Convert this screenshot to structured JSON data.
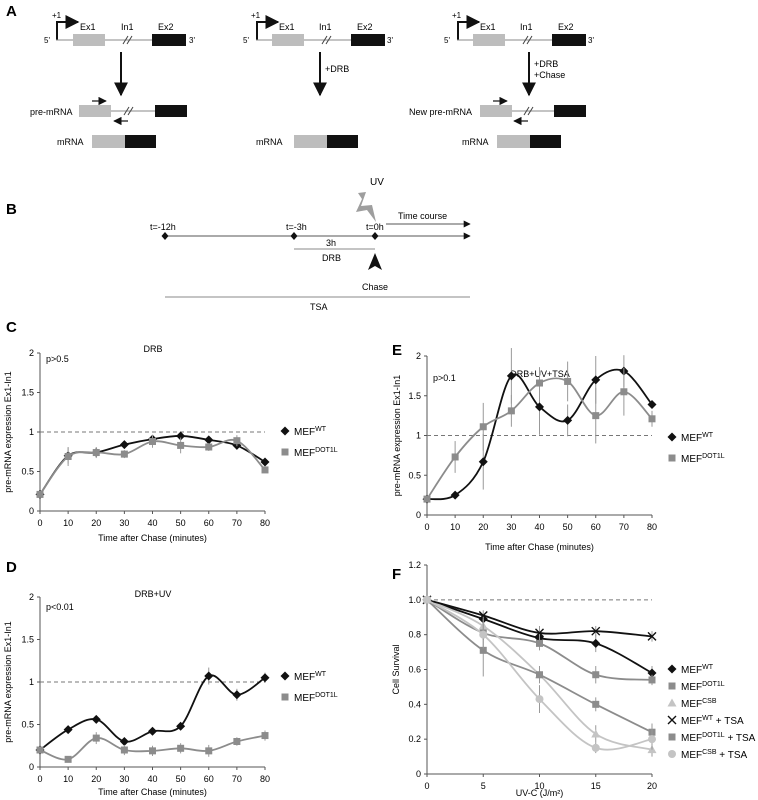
{
  "panel_letters": {
    "a": "A",
    "b": "B",
    "c": "C",
    "d": "D",
    "e": "E",
    "f": "F"
  },
  "panelA": {
    "tss": "+1",
    "five": "5'",
    "three": "3'",
    "ex1": "Ex1",
    "in1": "In1",
    "ex2": "Ex2",
    "drb": "+DRB",
    "drb2": "+DRB",
    "chase": "+Chase",
    "premrna": "pre-mRNA",
    "new_premrna": "New pre-mRNA",
    "mrna": "mRNA",
    "colors": {
      "exon1": "#bdbdbd",
      "exon2": "#111111",
      "arrow": "#111111"
    }
  },
  "panelB": {
    "uv": "UV",
    "time_course": "Time course",
    "t12": "t=-12h",
    "t3": "t=-3h",
    "t0": "t=0h",
    "dur": "3h",
    "drb": "DRB",
    "chase": "Chase",
    "tsa": "TSA"
  },
  "chart_data": [
    {
      "panel": "C",
      "type": "line",
      "title": "DRB",
      "annotation": "p>0.5",
      "xlabel": "Time after Chase (minutes)",
      "ylabel": "pre-mRNA expression Ex1-In1",
      "x": [
        0,
        10,
        20,
        30,
        40,
        50,
        60,
        70,
        80
      ],
      "xlim": [
        0,
        80
      ],
      "ylim": [
        0,
        2
      ],
      "yticks": [
        0,
        0.5,
        1,
        1.5,
        2
      ],
      "ytick_labels": [
        "0",
        "0.5",
        "1",
        "1.5",
        "2"
      ],
      "reference_line": 1,
      "series": [
        {
          "base": "MEF",
          "sup": "WT",
          "marker": "diamond",
          "color": "#111111",
          "values": [
            0.21,
            0.7,
            0.74,
            0.84,
            0.91,
            0.95,
            0.9,
            0.83,
            0.62
          ],
          "errors": [
            0,
            0.1,
            0.06,
            0.04,
            0.05,
            0.04,
            0.04,
            0.05,
            0.03
          ]
        },
        {
          "base": "MEF",
          "sup": "DOT1L",
          "marker": "square",
          "color": "#8c8c8c",
          "values": [
            0.21,
            0.69,
            0.74,
            0.72,
            0.88,
            0.83,
            0.81,
            0.89,
            0.52
          ],
          "errors": [
            0,
            0.12,
            0.07,
            0.05,
            0.08,
            0.1,
            0.05,
            0.07,
            0.04
          ]
        }
      ]
    },
    {
      "panel": "D",
      "type": "line",
      "title": "DRB+UV",
      "annotation": "p<0.01",
      "xlabel": "Time after Chase (minutes)",
      "ylabel": "pre-mRNA expression Ex1-In1",
      "x": [
        0,
        10,
        20,
        30,
        40,
        50,
        60,
        70,
        80
      ],
      "xlim": [
        0,
        80
      ],
      "ylim": [
        0,
        2
      ],
      "yticks": [
        0,
        0.5,
        1,
        1.5,
        2
      ],
      "ytick_labels": [
        "0",
        "0.5",
        "1",
        "1.5",
        "2"
      ],
      "reference_line": 1,
      "series": [
        {
          "base": "MEF",
          "sup": "WT",
          "marker": "diamond",
          "color": "#111111",
          "values": [
            0.2,
            0.44,
            0.56,
            0.3,
            0.42,
            0.48,
            1.07,
            0.85,
            1.05
          ],
          "errors": [
            0,
            0.03,
            0.04,
            0.04,
            0.03,
            0.04,
            0.1,
            0.07,
            0.06
          ]
        },
        {
          "base": "MEF",
          "sup": "DOT1L",
          "marker": "square",
          "color": "#8c8c8c",
          "values": [
            0.2,
            0.09,
            0.34,
            0.2,
            0.19,
            0.22,
            0.19,
            0.3,
            0.37
          ],
          "errors": [
            0,
            0.03,
            0.07,
            0.06,
            0.06,
            0.06,
            0.07,
            0.05,
            0.06
          ]
        }
      ]
    },
    {
      "panel": "E",
      "type": "line",
      "title": "DRB+UV+TSA",
      "annotation": "p>0.1",
      "xlabel": "Time after Chase (minutes)",
      "ylabel": "pre-mRNA expression Ex1-In1",
      "x": [
        0,
        10,
        20,
        30,
        40,
        50,
        60,
        70,
        80
      ],
      "xlim": [
        0,
        80
      ],
      "ylim": [
        0,
        2
      ],
      "yticks": [
        0,
        0.5,
        1,
        1.5,
        2
      ],
      "ytick_labels": [
        "0",
        "0.5",
        "1",
        "1.5",
        "2"
      ],
      "reference_line": 1,
      "series": [
        {
          "base": "MEF",
          "sup": "WT",
          "marker": "diamond",
          "color": "#111111",
          "values": [
            0.2,
            0.25,
            0.67,
            1.75,
            1.36,
            1.19,
            1.7,
            1.81,
            1.39
          ],
          "errors": [
            0,
            0.02,
            0.35,
            0.35,
            0.35,
            0.2,
            0.3,
            0.2,
            0.05
          ]
        },
        {
          "base": "MEF",
          "sup": "DOT1L",
          "marker": "square",
          "color": "#8c8c8c",
          "values": [
            0.2,
            0.73,
            1.11,
            1.31,
            1.66,
            1.68,
            1.25,
            1.55,
            1.21
          ],
          "errors": [
            0,
            0.2,
            0.3,
            0.2,
            0.2,
            0.25,
            0.35,
            0.3,
            0.1
          ]
        }
      ]
    },
    {
      "panel": "F",
      "type": "line",
      "title": "",
      "annotation": "",
      "xlabel": "UV-C (J/m²)",
      "ylabel": "Cell Survival",
      "x": [
        0,
        5,
        10,
        15,
        20
      ],
      "xlim": [
        0,
        20
      ],
      "ylim": [
        0,
        1.2
      ],
      "yticks": [
        0,
        0.2,
        0.4,
        0.6,
        0.8,
        1.0,
        1.2
      ],
      "ytick_labels": [
        "0",
        "0.2",
        "0.4",
        "0.6",
        "0.8",
        "1.0",
        "1.2"
      ],
      "reference_line": 1,
      "series": [
        {
          "base": "MEF",
          "sup": "WT",
          "suffix": "",
          "marker": "diamond",
          "color": "#111111",
          "values": [
            1.0,
            0.89,
            0.78,
            0.75,
            0.58
          ],
          "errors": [
            0.02,
            0.03,
            0.04,
            0.05,
            0.04
          ]
        },
        {
          "base": "MEF",
          "sup": "DOT1L",
          "suffix": "",
          "marker": "square",
          "color": "#8c8c8c",
          "values": [
            1.0,
            0.81,
            0.75,
            0.57,
            0.54
          ],
          "errors": [
            0.02,
            0.04,
            0.04,
            0.05,
            0.03
          ]
        },
        {
          "base": "MEF",
          "sup": "CSB",
          "suffix": "",
          "marker": "triangle",
          "color": "#c4c4c4",
          "values": [
            1.0,
            0.85,
            0.57,
            0.23,
            0.14
          ],
          "errors": [
            0.02,
            0.04,
            0.05,
            0.05,
            0.04
          ]
        },
        {
          "base": "MEF",
          "sup": "WT",
          "suffix": " + TSA",
          "marker": "x",
          "color": "#111111",
          "values": [
            1.0,
            0.91,
            0.81,
            0.82,
            0.79
          ],
          "errors": [
            0.02,
            0.03,
            0.04,
            0.03,
            0.03
          ]
        },
        {
          "base": "MEF",
          "sup": "DOT1L",
          "suffix": " + TSA",
          "marker": "square",
          "color": "#8c8c8c",
          "values": [
            1.0,
            0.71,
            0.57,
            0.4,
            0.24
          ],
          "errors": [
            0.02,
            0.15,
            0.04,
            0.04,
            0.05
          ]
        },
        {
          "base": "MEF",
          "sup": "CSB",
          "suffix": " + TSA",
          "marker": "circle",
          "color": "#c4c4c4",
          "values": [
            1.0,
            0.8,
            0.43,
            0.15,
            0.2
          ],
          "errors": [
            0.02,
            0.08,
            0.08,
            0.03,
            0.06
          ]
        }
      ]
    }
  ]
}
